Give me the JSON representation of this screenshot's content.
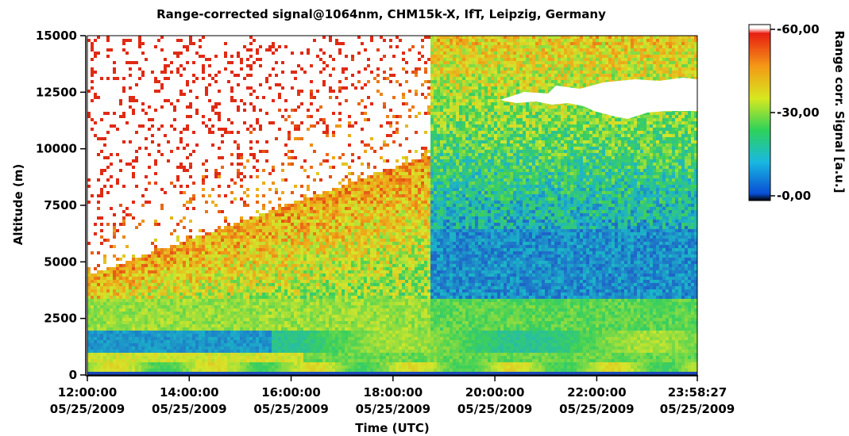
{
  "chart_data": {
    "type": "heatmap",
    "title": "Range-corrected signal@1064nm,  CHM15k-X, IfT, Leipzig, Germany",
    "xlabel": "Time (UTC)",
    "ylabel": "Altitude (m)",
    "colorbar_label": "Range corr. Signal [a.u.]",
    "xlim": [
      "12:00:00",
      "23:58:27"
    ],
    "ylim": [
      0,
      15000
    ],
    "x_ticks": [
      {
        "time": "12:00:00",
        "date": "05/25/2009",
        "hour": 12.0
      },
      {
        "time": "14:00:00",
        "date": "05/25/2009",
        "hour": 14.0
      },
      {
        "time": "16:00:00",
        "date": "05/25/2009",
        "hour": 16.0
      },
      {
        "time": "18:00:00",
        "date": "05/25/2009",
        "hour": 18.0
      },
      {
        "time": "20:00:00",
        "date": "05/25/2009",
        "hour": 20.0
      },
      {
        "time": "22:00:00",
        "date": "05/25/2009",
        "hour": 22.0
      },
      {
        "time": "23:58:27",
        "date": "05/25/2009",
        "hour": 23.974
      }
    ],
    "y_ticks": [
      {
        "label": "0",
        "value": 0
      },
      {
        "label": "2500",
        "value": 2500
      },
      {
        "label": "5000",
        "value": 5000
      },
      {
        "label": "7500",
        "value": 7500
      },
      {
        "label": "10000",
        "value": 10000
      },
      {
        "label": "12500",
        "value": 12500
      },
      {
        "label": "15000",
        "value": 15000
      }
    ],
    "colorbar": {
      "range": [
        0,
        60
      ],
      "ticks": [
        {
          "label": "-60,00",
          "value": 60
        },
        {
          "label": "-30,00",
          "value": 30
        },
        {
          "label": "-0,00",
          "value": 0
        }
      ],
      "colors": [
        "#000000",
        "#0a4fd6",
        "#19b8e0",
        "#2dd25a",
        "#d6e81f",
        "#f49a16",
        "#e81e12",
        "#ffffff"
      ]
    },
    "colormap_colors": {
      "low": "#1f54c8",
      "mid_low": "#1cb4c8",
      "mid": "#3cd05a",
      "mid_high": "#d4e62a",
      "high": "#f0a018",
      "very_high": "#e02a14",
      "no_signal": "#ffffff"
    }
  }
}
